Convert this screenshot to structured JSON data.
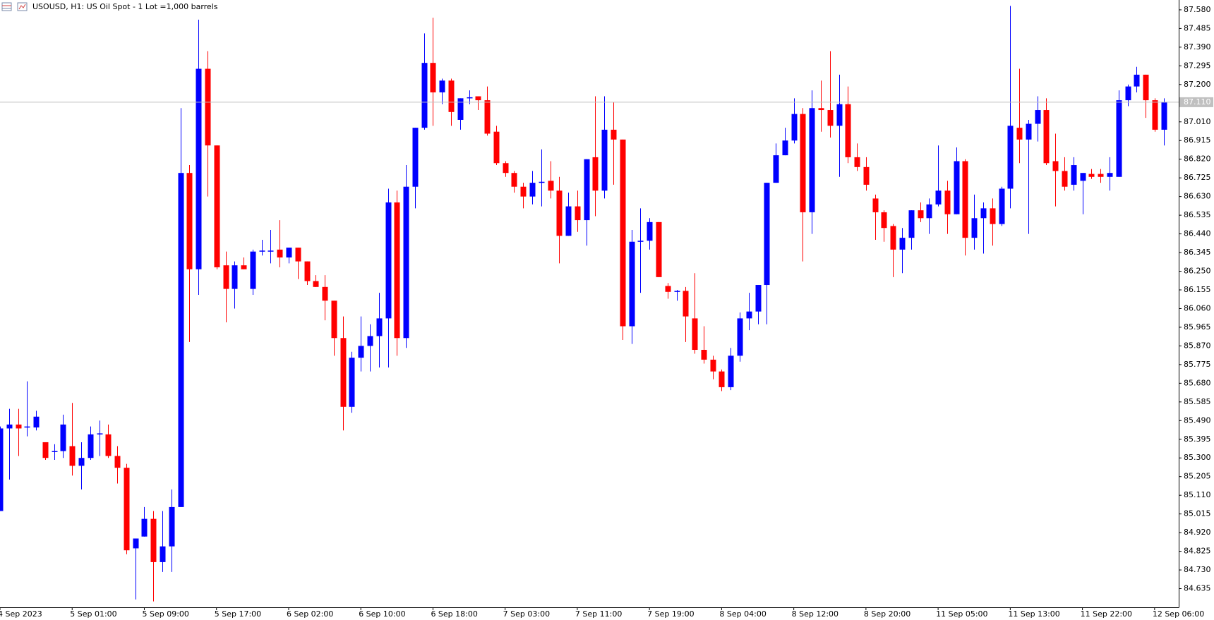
{
  "chart_data": {
    "type": "candlestick",
    "title": "USOUSD, H1:  US Oil Spot - 1 Lot =1,000 barrels",
    "up_color": "#0000ff",
    "down_color": "#ff0000",
    "grid": false,
    "categories": [
      "4 Sep 2023",
      null,
      null,
      null,
      null,
      null,
      null,
      null,
      "5 Sep 01:00",
      null,
      null,
      null,
      null,
      null,
      null,
      null,
      "5 Sep 09:00",
      null,
      null,
      null,
      null,
      null,
      null,
      null,
      "5 Sep 17:00",
      null,
      null,
      null,
      null,
      null,
      null,
      null,
      "6 Sep 02:00",
      null,
      null,
      null,
      null,
      null,
      null,
      null,
      "6 Sep 10:00",
      null,
      null,
      null,
      null,
      null,
      null,
      null,
      "6 Sep 18:00",
      null,
      null,
      null,
      null,
      null,
      null,
      null,
      "7 Sep 03:00",
      null,
      null,
      null,
      null,
      null,
      null,
      null,
      "7 Sep 11:00",
      null,
      null,
      null,
      null,
      null,
      null,
      null,
      "7 Sep 19:00",
      null,
      null,
      null,
      null,
      null,
      null,
      null,
      "8 Sep 04:00",
      null,
      null,
      null,
      null,
      null,
      null,
      null,
      "8 Sep 12:00",
      null,
      null,
      null,
      null,
      null,
      null,
      null,
      "8 Sep 20:00",
      null,
      null,
      null,
      null,
      null,
      null,
      null,
      "11 Sep 05:00",
      null,
      null,
      null,
      null,
      null,
      null,
      null,
      "11 Sep 13:00",
      null,
      null,
      null,
      null,
      null,
      null,
      null,
      "11 Sep 22:00",
      null,
      null,
      null,
      null,
      null,
      null,
      null,
      "12 Sep 06:00",
      null
    ],
    "open": [
      85.03,
      85.45,
      85.47,
      85.455,
      85.455,
      85.38,
      85.33,
      85.335,
      85.36,
      85.26,
      85.3,
      85.42,
      85.42,
      85.31,
      85.25,
      84.84,
      84.9,
      84.99,
      84.77,
      84.85,
      85.05,
      86.75,
      86.26,
      87.28,
      86.89,
      86.28,
      86.16,
      86.28,
      86.16,
      86.35,
      86.35,
      86.36,
      86.32,
      86.37,
      86.3,
      86.2,
      86.17,
      86.1,
      85.91,
      85.56,
      85.81,
      85.87,
      85.92,
      86.01,
      86.6,
      85.91,
      86.68,
      86.98,
      87.31,
      87.16,
      87.22,
      87.02,
      87.13,
      87.14,
      87.12,
      86.96,
      86.8,
      86.75,
      86.68,
      86.63,
      86.7,
      86.71,
      86.66,
      86.43,
      86.58,
      86.51,
      86.83,
      86.66,
      86.97,
      86.92,
      85.97,
      86.4,
      86.405,
      86.5,
      86.175,
      86.145,
      86.15,
      86.01,
      85.85,
      85.8,
      85.74,
      85.66,
      85.82,
      86.01,
      86.045,
      86.18,
      86.7,
      86.84,
      86.915,
      87.05,
      86.55,
      87.08,
      87.07,
      86.99,
      87.1,
      86.83,
      86.78,
      86.62,
      86.55,
      86.48,
      86.36,
      86.42,
      86.56,
      86.52,
      86.59,
      86.66,
      86.54,
      86.81,
      86.42,
      86.52,
      86.57,
      86.49,
      86.67,
      86.98,
      86.92,
      87.0,
      87.07,
      86.81,
      86.76,
      86.69,
      86.71,
      86.745,
      86.745,
      86.73,
      86.73,
      87.12,
      87.19,
      87.25,
      87.12,
      86.97
    ],
    "high": [
      85.46,
      85.55,
      85.55,
      85.69,
      85.54,
      85.38,
      85.37,
      85.52,
      85.58,
      85.38,
      85.46,
      85.49,
      85.47,
      85.36,
      85.27,
      84.89,
      85.05,
      85.03,
      85.03,
      85.14,
      87.08,
      86.79,
      87.53,
      87.37,
      86.89,
      86.35,
      86.3,
      86.32,
      86.36,
      86.41,
      86.46,
      86.51,
      86.37,
      86.37,
      86.3,
      86.23,
      86.23,
      86.1,
      86.02,
      85.84,
      86.02,
      85.98,
      86.14,
      86.67,
      86.66,
      86.79,
      86.98,
      87.46,
      87.54,
      87.23,
      87.23,
      87.13,
      87.17,
      87.14,
      87.19,
      86.99,
      86.81,
      86.76,
      86.7,
      86.76,
      86.87,
      86.81,
      86.73,
      86.65,
      86.66,
      86.82,
      87.14,
      87.14,
      87.11,
      86.92,
      86.46,
      86.57,
      86.52,
      86.5,
      86.19,
      86.155,
      86.17,
      86.24,
      85.97,
      85.82,
      85.75,
      85.86,
      86.04,
      86.14,
      86.18,
      86.7,
      86.9,
      86.98,
      87.13,
      87.08,
      87.17,
      87.22,
      87.37,
      87.25,
      87.19,
      86.9,
      86.83,
      86.64,
      86.56,
      86.49,
      86.47,
      86.56,
      86.6,
      86.62,
      86.89,
      86.71,
      86.88,
      86.82,
      86.64,
      86.6,
      86.62,
      86.68,
      87.6,
      87.28,
      87.02,
      87.14,
      87.13,
      86.95,
      86.83,
      86.83,
      86.75,
      86.77,
      86.77,
      86.83,
      87.17,
      87.2,
      87.29,
      87.25,
      87.13,
      87.13
    ],
    "low": [
      85.03,
      85.19,
      85.31,
      85.41,
      85.44,
      85.29,
      85.29,
      85.3,
      85.21,
      85.14,
      85.29,
      85.31,
      85.3,
      85.17,
      84.81,
      84.58,
      84.9,
      84.57,
      84.72,
      84.72,
      85.05,
      85.89,
      86.13,
      86.63,
      86.26,
      85.99,
      86.06,
      86.26,
      86.13,
      86.33,
      86.29,
      86.27,
      86.29,
      86.21,
      86.18,
      86.17,
      86.0,
      85.82,
      85.44,
      85.53,
      85.74,
      85.74,
      85.76,
      85.76,
      85.82,
      85.86,
      86.57,
      86.97,
      86.99,
      87.1,
      86.99,
      86.97,
      87.1,
      87.07,
      86.94,
      86.79,
      86.73,
      86.65,
      86.57,
      86.59,
      86.58,
      86.62,
      86.29,
      86.43,
      86.45,
      86.38,
      86.53,
      86.62,
      86.69,
      85.9,
      85.88,
      86.14,
      86.36,
      86.22,
      86.11,
      86.1,
      85.89,
      85.83,
      85.78,
      85.7,
      85.64,
      85.645,
      85.79,
      85.95,
      85.98,
      85.98,
      86.7,
      86.84,
      86.9,
      86.3,
      86.44,
      86.96,
      86.93,
      86.73,
      86.8,
      86.76,
      86.66,
      86.41,
      86.4,
      86.22,
      86.24,
      86.36,
      86.5,
      86.44,
      86.58,
      86.44,
      86.54,
      86.33,
      86.36,
      86.34,
      86.38,
      86.48,
      86.57,
      86.8,
      86.44,
      86.91,
      86.79,
      86.58,
      86.66,
      86.66,
      86.54,
      86.72,
      86.7,
      86.66,
      86.73,
      87.09,
      87.16,
      87.03,
      86.96,
      86.89
    ],
    "close": [
      85.45,
      85.47,
      85.45,
      85.46,
      85.51,
      85.3,
      85.335,
      85.47,
      85.26,
      85.3,
      85.42,
      85.425,
      85.31,
      85.25,
      84.83,
      84.89,
      84.99,
      84.77,
      84.85,
      85.05,
      86.75,
      86.26,
      87.28,
      86.89,
      86.27,
      86.16,
      86.28,
      86.26,
      86.35,
      86.355,
      86.355,
      86.32,
      86.37,
      86.3,
      86.2,
      86.17,
      86.1,
      85.91,
      85.56,
      85.81,
      85.87,
      85.92,
      86.01,
      86.6,
      85.91,
      86.68,
      86.98,
      87.31,
      87.16,
      87.22,
      87.06,
      87.13,
      87.135,
      87.12,
      86.95,
      86.8,
      86.75,
      86.68,
      86.63,
      86.7,
      86.705,
      86.66,
      86.43,
      86.58,
      86.51,
      86.82,
      86.66,
      86.97,
      86.92,
      85.97,
      86.4,
      86.405,
      86.5,
      86.22,
      86.145,
      86.15,
      86.02,
      85.85,
      85.8,
      85.74,
      85.66,
      85.82,
      86.01,
      86.045,
      86.18,
      86.7,
      86.84,
      86.915,
      87.05,
      86.55,
      87.08,
      87.07,
      86.99,
      87.1,
      86.83,
      86.78,
      86.69,
      86.55,
      86.47,
      86.36,
      86.42,
      86.56,
      86.52,
      86.59,
      86.66,
      86.54,
      86.81,
      86.42,
      86.52,
      86.57,
      86.49,
      86.67,
      86.99,
      86.92,
      87.0,
      87.07,
      86.8,
      86.76,
      86.68,
      86.79,
      86.75,
      86.73,
      86.73,
      86.75,
      87.12,
      87.19,
      87.25,
      87.12,
      86.97,
      87.11
    ],
    "ylim": [
      84.54,
      87.63
    ],
    "yticks": [
      {
        "value": 87.58,
        "label": "87.580"
      },
      87.485,
      {
        "value": 87.39,
        "label": "87.390"
      },
      87.295,
      {
        "value": 87.2,
        "label": "87.200"
      },
      {
        "value": 87.01,
        "label": "87.010"
      },
      86.915,
      {
        "value": 86.82,
        "label": "86.820"
      },
      86.725,
      {
        "value": 86.63,
        "label": "86.630"
      },
      86.535,
      {
        "value": 86.44,
        "label": "86.440"
      },
      86.345,
      {
        "value": 86.25,
        "label": "86.250"
      },
      86.155,
      {
        "value": 86.06,
        "label": "86.060"
      },
      85.965,
      {
        "value": 85.87,
        "label": "85.870"
      },
      85.775,
      {
        "value": 85.68,
        "label": "85.680"
      },
      85.585,
      {
        "value": 85.49,
        "label": "85.490"
      },
      85.395,
      {
        "value": 85.3,
        "label": "85.300"
      },
      85.205,
      {
        "value": 85.11,
        "label": "85.110"
      },
      85.015,
      {
        "value": 84.92,
        "label": "84.920"
      },
      84.825,
      {
        "value": 84.73,
        "label": "84.730"
      },
      84.635
    ],
    "last_price": {
      "value": 87.11,
      "label": "87.110"
    }
  }
}
